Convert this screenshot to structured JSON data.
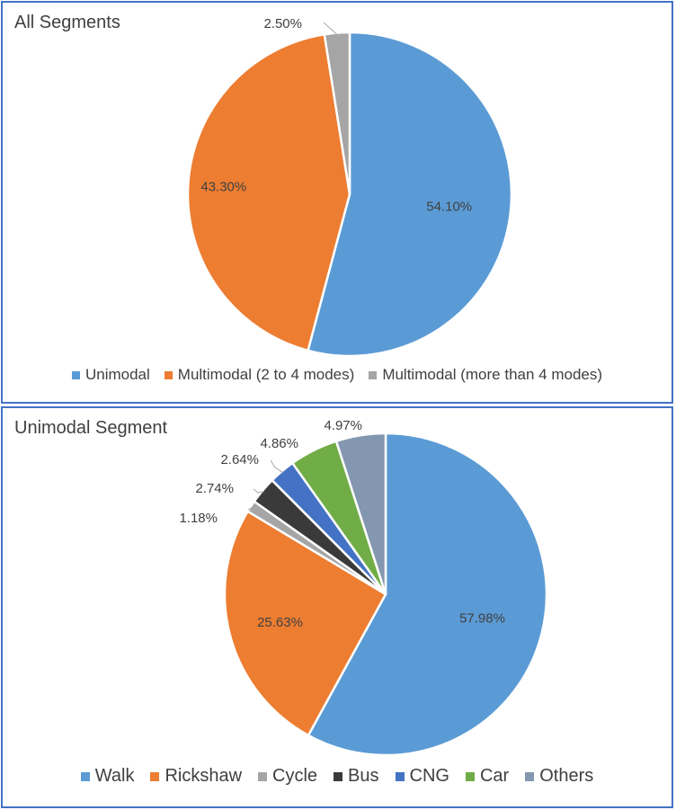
{
  "chart_data": [
    {
      "type": "pie",
      "title": "All Segments",
      "slices": [
        {
          "name": "Unimodal",
          "value": 54.1,
          "label": "54.10%",
          "color": "#5B9BD5"
        },
        {
          "name": "Multimodal (2 to 4 modes)",
          "value": 43.3,
          "label": "43.30%",
          "color": "#ED7D31"
        },
        {
          "name": "Multimodal (more than 4 modes)",
          "value": 2.5,
          "label": "2.50%",
          "color": "#A5A5A5"
        }
      ],
      "legend_position": "bottom"
    },
    {
      "type": "pie",
      "title": "Unimodal Segment",
      "slices": [
        {
          "name": "Walk",
          "value": 57.98,
          "label": "57.98%",
          "color": "#5B9BD5"
        },
        {
          "name": "Rickshaw",
          "value": 25.63,
          "label": "25.63%",
          "color": "#ED7D31"
        },
        {
          "name": "Cycle",
          "value": 1.18,
          "label": "1.18%",
          "color": "#A5A5A5"
        },
        {
          "name": "Bus",
          "value": 2.74,
          "label": "2.74%",
          "color": "#3A3A3A"
        },
        {
          "name": "CNG",
          "value": 2.64,
          "label": "2.64%",
          "color": "#4472C4"
        },
        {
          "name": "Car",
          "value": 4.86,
          "label": "4.86%",
          "color": "#70AD47"
        },
        {
          "name": "Others",
          "value": 4.97,
          "label": "4.97%",
          "color": "#8497B0"
        }
      ],
      "legend_position": "bottom"
    }
  ]
}
